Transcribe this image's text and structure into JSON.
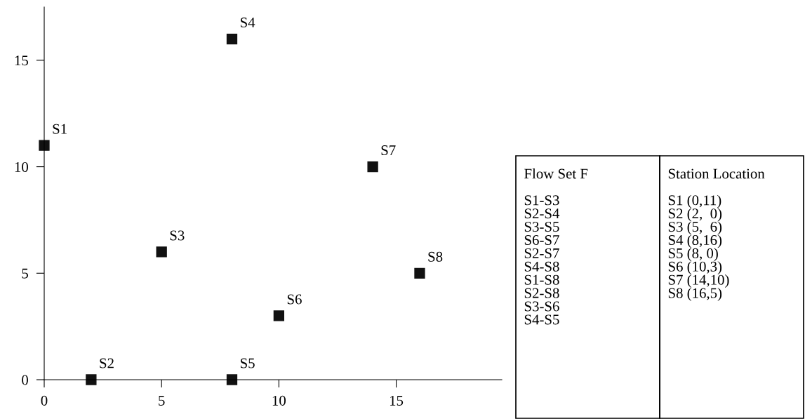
{
  "chart_data": {
    "type": "scatter",
    "x": [
      0,
      2,
      5,
      8,
      8,
      10,
      14,
      16
    ],
    "values": [
      11,
      0,
      6,
      16,
      0,
      3,
      10,
      5
    ],
    "value_labels": [
      "S1",
      "S2",
      "S3",
      "S4",
      "S5",
      "S6",
      "S7",
      "S8"
    ],
    "color": "#111111",
    "marker": "square",
    "xlim": [
      0,
      19.5
    ],
    "ylim": [
      0,
      17.5
    ],
    "xticks": [
      0,
      5,
      10,
      15
    ],
    "yticks": [
      0,
      5,
      10,
      15
    ],
    "grid": false,
    "annotations": [
      "Flow Set F\n\nS1-S3\nS2-S4\nS3-S5\nS6-S7\nS2-S7\nS4-S8\nS1-S8\nS2-S8\nS3-S6\nS4-S5",
      "Station Location\n\nS1 (0,11)\nS2 (2,  0)\nS3 (5,  6)\nS4 (8,16)\nS5 (8, 0)\nS6 (10,3)\nS7 (14,10)\nS8 (16,5)"
    ]
  }
}
